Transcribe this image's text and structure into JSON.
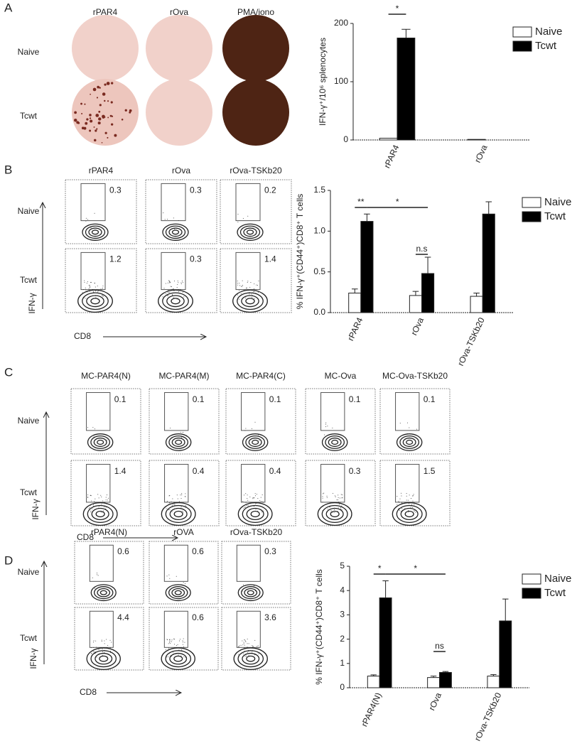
{
  "panel_a": {
    "label": "A",
    "columns": [
      "rPAR4",
      "rOva",
      "PMA/iono"
    ],
    "rows": [
      "Naive",
      "Tcwt"
    ]
  },
  "panel_b": {
    "label": "B",
    "columns": [
      "rPAR4",
      "rOva",
      "rOva-TSKb20"
    ],
    "rows": [
      "Naive",
      "Tcwt"
    ],
    "gates": [
      [
        0.3,
        0.3,
        0.2
      ],
      [
        1.2,
        0.3,
        1.4
      ]
    ],
    "y_axis": "IFN-γ",
    "x_axis": "CD8"
  },
  "panel_c": {
    "label": "C",
    "columns": [
      "MC-PAR4(N)",
      "MC-PAR4(M)",
      "MC-PAR4(C)",
      "MC-Ova",
      "MC-Ova-TSKb20"
    ],
    "rows": [
      "Naive",
      "Tcwt"
    ],
    "gates": [
      [
        0.1,
        0.1,
        0.1,
        0.1,
        0.1
      ],
      [
        1.4,
        0.4,
        0.4,
        0.3,
        1.5
      ]
    ],
    "y_axis": "IFN-γ",
    "x_axis": "CD8"
  },
  "panel_d": {
    "label": "D",
    "columns": [
      "rPAR4(N)",
      "rOVA",
      "rOva-TSKb20"
    ],
    "rows": [
      "Naive",
      "Tcwt"
    ],
    "gates": [
      [
        0.6,
        0.6,
        0.3
      ],
      [
        4.4,
        0.6,
        3.6
      ]
    ],
    "y_axis": "IFN-γ",
    "x_axis": "CD8"
  },
  "chart_data": [
    {
      "type": "bar",
      "y_label": "IFN-γ⁺/10⁶ splenocytes",
      "categories": [
        "rPAR4",
        "rOva"
      ],
      "series": [
        {
          "name": "Naive",
          "color": "#ffffff",
          "values": [
            3,
            1
          ],
          "errors": [
            null,
            null
          ]
        },
        {
          "name": "Tcwt",
          "color": "#000000",
          "values": [
            175,
            0
          ],
          "errors": [
            15,
            null
          ]
        }
      ],
      "ylim": [
        0,
        200
      ],
      "yticks": [
        0,
        100,
        200
      ],
      "annotations": [
        "*"
      ],
      "legend": "upper right"
    },
    {
      "type": "bar",
      "y_label": "% IFN-γ⁺(CD44⁺)CD8⁺ T cells",
      "categories": [
        "rPAR4",
        "rOva",
        "rOva-TSKb20"
      ],
      "series": [
        {
          "name": "Naive",
          "color": "#ffffff",
          "values": [
            0.24,
            0.21,
            0.2
          ],
          "errors": [
            0.05,
            0.05,
            0.04
          ]
        },
        {
          "name": "Tcwt",
          "color": "#000000",
          "values": [
            1.12,
            0.48,
            1.21
          ],
          "errors": [
            0.09,
            0.2,
            0.15
          ]
        }
      ],
      "ylim": [
        0,
        1.5
      ],
      "yticks": [
        {
          "value": 0,
          "label": "0.0"
        },
        0.5,
        {
          "value": 1,
          "label": "1.0"
        },
        1.5
      ],
      "annotations": [
        "**",
        "*",
        "n.s"
      ],
      "legend": "upper right"
    },
    {
      "type": "bar",
      "y_label": "% IFN-γ⁺(CD44⁺)CD8⁺ T cells",
      "categories": [
        "rPAR4(N)",
        "rOva",
        "rOva-TSKb20"
      ],
      "series": [
        {
          "name": "Naive",
          "color": "#ffffff",
          "values": [
            0.48,
            0.42,
            0.48
          ],
          "errors": [
            0.05,
            0.06,
            0.06
          ]
        },
        {
          "name": "Tcwt",
          "color": "#000000",
          "values": [
            3.7,
            0.63,
            2.75
          ],
          "errors": [
            0.7,
            0.04,
            0.9
          ]
        }
      ],
      "ylim": [
        0,
        5
      ],
      "yticks": [
        0,
        1,
        2,
        3,
        4,
        5
      ],
      "annotations": [
        "*",
        "*",
        "ns"
      ],
      "legend": "upper right"
    }
  ]
}
